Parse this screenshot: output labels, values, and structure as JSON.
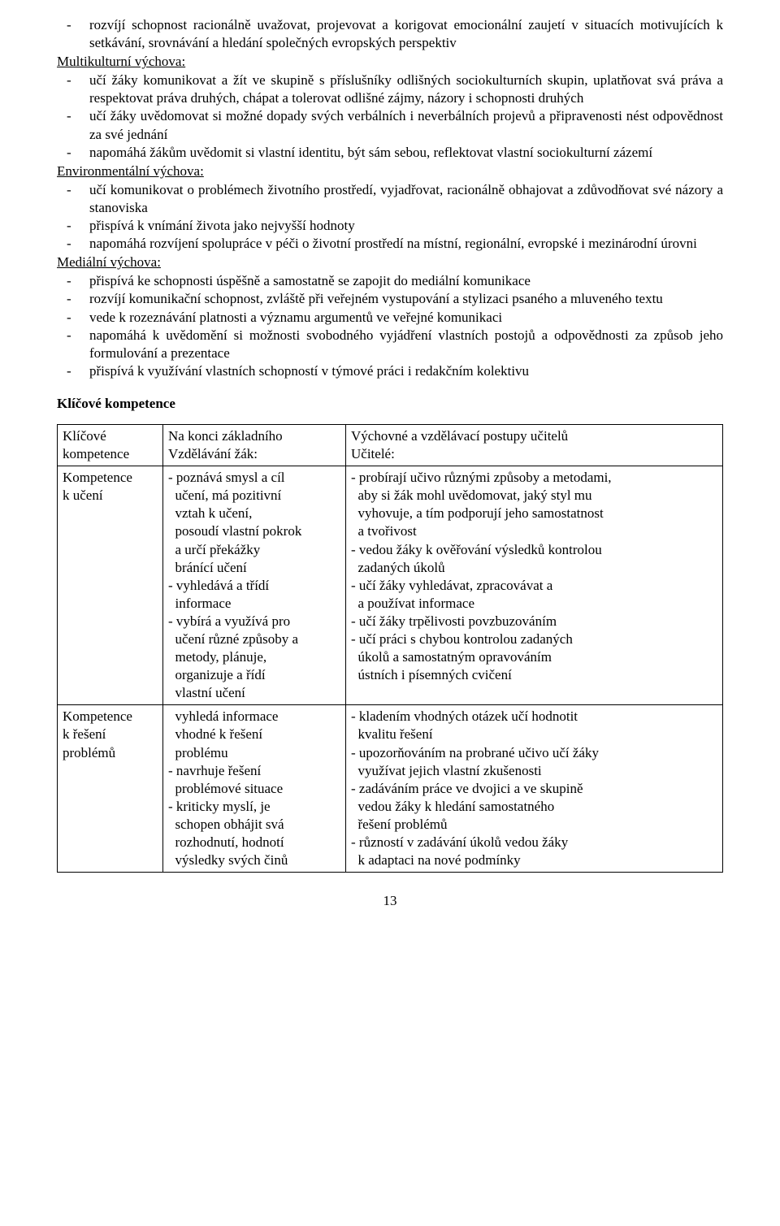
{
  "topBullets": [
    "rozvíjí schopnost racionálně uvažovat, projevovat a korigovat emocionální zaujetí v situacích motivujících k setkávání, srovnávání a hledání společných evropských perspektiv"
  ],
  "sections": [
    {
      "title": "Multikulturní výchova:",
      "bullets": [
        "učí žáky komunikovat a žít ve skupině s příslušníky odlišných sociokulturních skupin, uplatňovat svá práva a respektovat práva druhých, chápat a tolerovat odlišné zájmy, názory i schopnosti druhých",
        "učí žáky uvědomovat si možné dopady svých verbálních i neverbálních projevů a připravenosti nést odpovědnost za své jednání",
        "napomáhá žákům uvědomit si vlastní identitu, být sám sebou, reflektovat vlastní sociokulturní zázemí"
      ]
    },
    {
      "title": "Environmentální výchova:",
      "bullets": [
        "učí komunikovat o problémech životního prostředí, vyjadřovat, racionálně obhajovat a zdůvodňovat své názory a stanoviska",
        "přispívá k vnímání života jako nejvyšší hodnoty",
        "napomáhá rozvíjení spolupráce v péči o životní prostředí na místní, regionální, evropské i mezinárodní úrovni"
      ]
    },
    {
      "title": "Mediální výchova:",
      "bullets": [
        "přispívá ke schopnosti úspěšně a samostatně se zapojit do mediální komunikace",
        "rozvíjí komunikační schopnost, zvláště při veřejném vystupování a stylizaci psaného  a mluveného textu",
        "vede k rozeznávání platnosti a významu argumentů ve veřejné komunikaci",
        "napomáhá  k uvědomění  si  možnosti  svobodného  vyjádření  vlastních  postojů  a odpovědnosti za způsob jeho formulování a prezentace",
        "přispívá k využívání vlastních schopností v týmové práci i redakčním kolektivu"
      ]
    }
  ],
  "tableHeading": "Klíčové kompetence",
  "table": {
    "header": {
      "c1": "Klíčové\nkompetence",
      "c2": "Na konci základního\nVzdělávání žák:",
      "c3": "Výchovné a vzdělávací postupy učitelů\nUčitelé:"
    },
    "rows": [
      {
        "c1": "Kompetence\nk učení",
        "c2": "- poznává smysl a cíl\n  učení, má pozitivní\n  vztah k učení,\n  posoudí vlastní pokrok\n  a určí překážky\n  bránící učení\n- vyhledává a třídí\n  informace\n- vybírá a využívá pro\n  učení různé způsoby a\n  metody, plánuje,\n  organizuje a řídí\n  vlastní učení",
        "c3": "- probírají učivo různými způsoby a metodami,\n  aby si žák mohl uvědomovat, jaký styl mu\n  vyhovuje, a tím podporují jeho samostatnost\n  a tvořivost\n- vedou žáky k ověřování výsledků kontrolou\n  zadaných úkolů\n- učí žáky vyhledávat, zpracovávat a\n  a používat informace\n- učí žáky trpělivosti povzbuzováním\n- učí práci s chybou kontrolou zadaných\n  úkolů a samostatným opravováním\n  ústních i písemných cvičení"
      },
      {
        "c1": "Kompetence\nk řešení\nproblémů",
        "c2": "  vyhledá informace\n  vhodné k řešení\n  problému\n- navrhuje řešení\n  problémové situace\n- kriticky myslí, je\n  schopen obhájit svá\n  rozhodnutí, hodnotí\n  výsledky svých činů",
        "c3": "- kladením vhodných otázek učí hodnotit\n  kvalitu řešení\n- upozorňováním na probrané učivo učí žáky\n  využívat jejich vlastní zkušenosti\n- zadáváním práce ve dvojici a ve skupině\n  vedou žáky k hledání samostatného\n  řešení problémů\n- růzností v zadávání úkolů vedou žáky\n  k adaptaci na nové podmínky"
      }
    ]
  },
  "pageNumber": "13"
}
